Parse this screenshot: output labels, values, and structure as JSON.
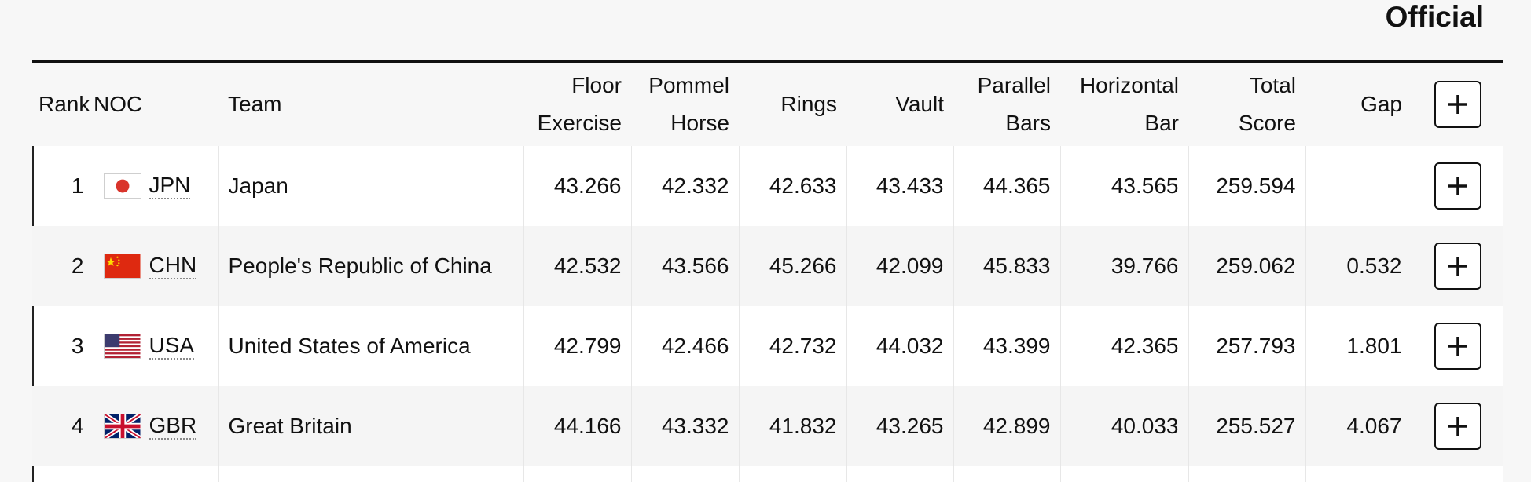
{
  "status": "Official",
  "headers": {
    "rank": "Rank",
    "noc": "NOC",
    "team": "Team",
    "floor": [
      "Floor",
      "Exercise"
    ],
    "pommel": [
      "Pommel",
      "Horse"
    ],
    "rings": "Rings",
    "vault": "Vault",
    "parallel": [
      "Parallel",
      "Bars"
    ],
    "horizontal": [
      "Horizontal",
      "Bar"
    ],
    "total": [
      "Total",
      "Score"
    ],
    "gap": "Gap"
  },
  "rows": [
    {
      "rank": "1",
      "noc": "JPN",
      "team": "Japan",
      "flag": "japan-flag",
      "floor": "43.266",
      "pommel": "42.332",
      "rings": "42.633",
      "vault": "43.433",
      "parallel": "44.365",
      "horizontal": "43.565",
      "total": "259.594",
      "gap": ""
    },
    {
      "rank": "2",
      "noc": "CHN",
      "team": "People's Republic of China",
      "flag": "china-flag",
      "floor": "42.532",
      "pommel": "43.566",
      "rings": "45.266",
      "vault": "42.099",
      "parallel": "45.833",
      "horizontal": "39.766",
      "total": "259.062",
      "gap": "0.532"
    },
    {
      "rank": "3",
      "noc": "USA",
      "team": "United States of America",
      "flag": "usa-flag",
      "floor": "42.799",
      "pommel": "42.466",
      "rings": "42.732",
      "vault": "44.032",
      "parallel": "43.399",
      "horizontal": "42.365",
      "total": "257.793",
      "gap": "1.801"
    },
    {
      "rank": "4",
      "noc": "GBR",
      "team": "Great Britain",
      "flag": "uk-flag",
      "floor": "44.166",
      "pommel": "43.332",
      "rings": "41.832",
      "vault": "43.265",
      "parallel": "42.899",
      "horizontal": "40.033",
      "total": "255.527",
      "gap": "4.067"
    }
  ],
  "icons": {
    "expand": "plus-icon"
  }
}
